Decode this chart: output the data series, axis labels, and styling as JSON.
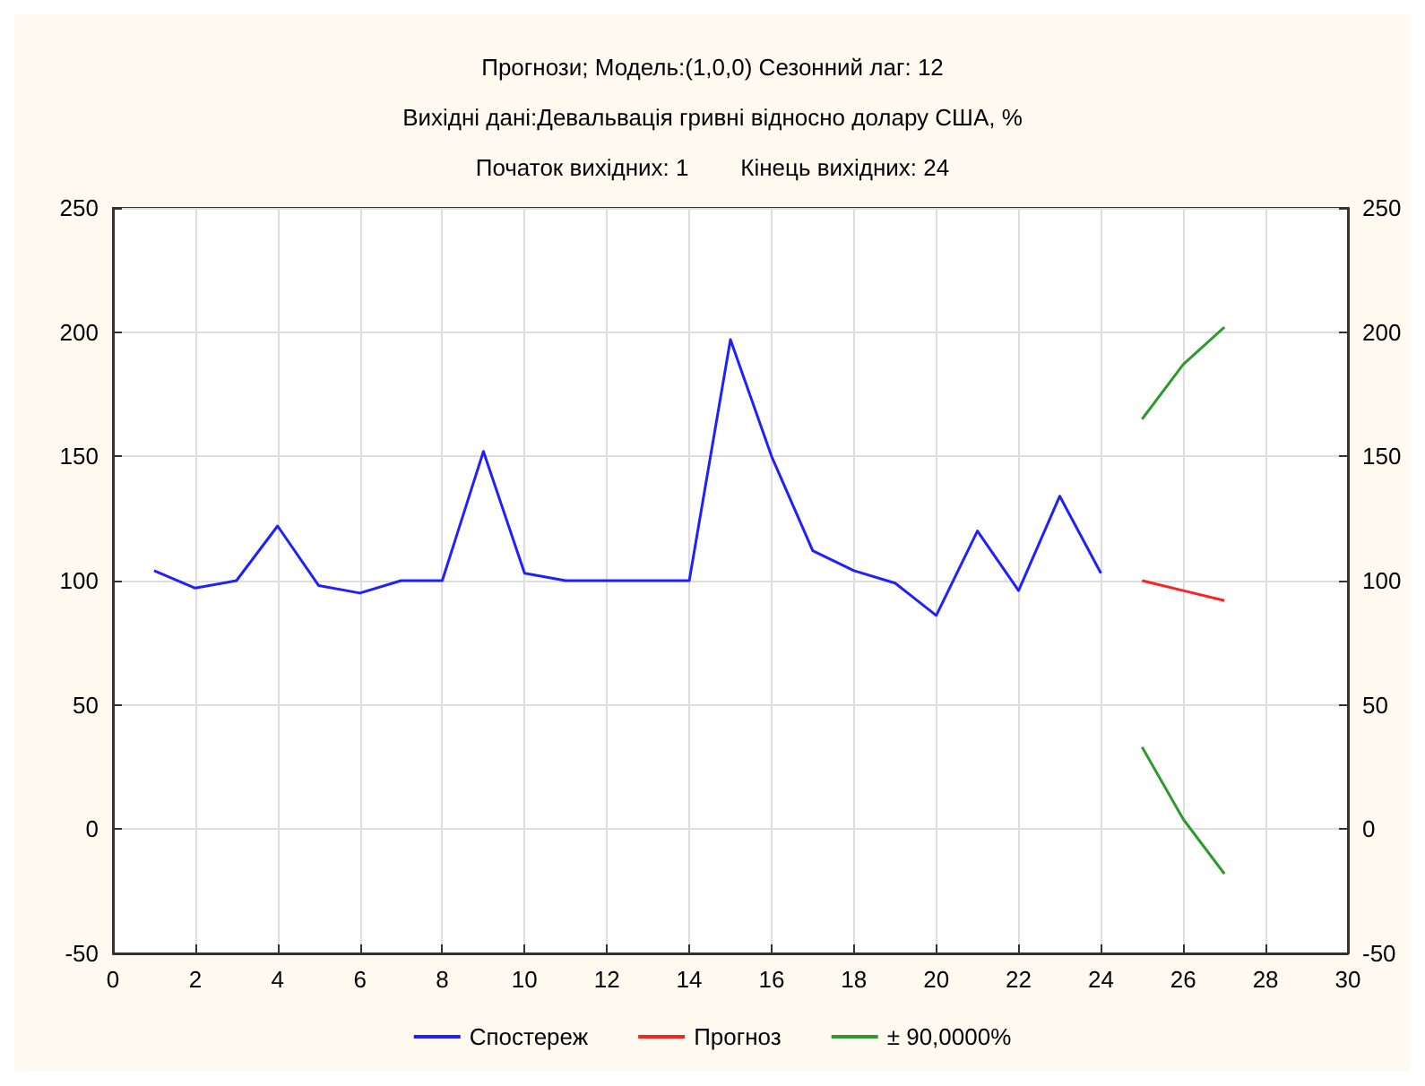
{
  "chart_data": {
    "type": "line",
    "title": "Прогнози; Модель:(1,0,0) Сезонний лаг: 12",
    "subtitle": "Вихідні дані:Девальвація гривні відносно долару США, %",
    "annotations": [
      "Початок вихідних: 1        Кінець вихідних: 24"
    ],
    "x": [
      1,
      2,
      3,
      4,
      5,
      6,
      7,
      8,
      9,
      10,
      11,
      12,
      13,
      14,
      15,
      16,
      17,
      18,
      19,
      20,
      21,
      22,
      23,
      24
    ],
    "series": [
      {
        "name": "Спостереж",
        "color": "#2020ff",
        "values": [
          104,
          97,
          100,
          122,
          98,
          95,
          100,
          100,
          152,
          103,
          100,
          100,
          100,
          100,
          197,
          150,
          112,
          104,
          99,
          86,
          120,
          96,
          134,
          103
        ]
      },
      {
        "name": "Прогноз",
        "color": "#ff2020",
        "x": [
          25,
          26,
          27
        ],
        "values": [
          100,
          96,
          92
        ]
      },
      {
        "name": "± 90,0000%",
        "color": "#2e9a2e",
        "x": [
          25,
          26,
          27
        ],
        "values": [
          165,
          187,
          202
        ]
      },
      {
        "color": "#2e9a2e",
        "x": [
          25,
          26,
          27
        ],
        "values": [
          33,
          4,
          -18
        ]
      }
    ],
    "xlim": [
      0,
      30
    ],
    "xticks": [
      0,
      2,
      4,
      6,
      8,
      10,
      12,
      14,
      16,
      18,
      20,
      22,
      24,
      26,
      28,
      30
    ],
    "ylim": [
      -50,
      250
    ],
    "yticks": [
      -50,
      0,
      50,
      100,
      150,
      200,
      250
    ],
    "y2lim": [
      -50,
      250
    ],
    "y2ticks": [
      -50,
      0,
      50,
      100,
      150,
      200,
      250
    ],
    "grid": true,
    "legend": "bottom",
    "marker": "none",
    "line_style": "solid"
  }
}
